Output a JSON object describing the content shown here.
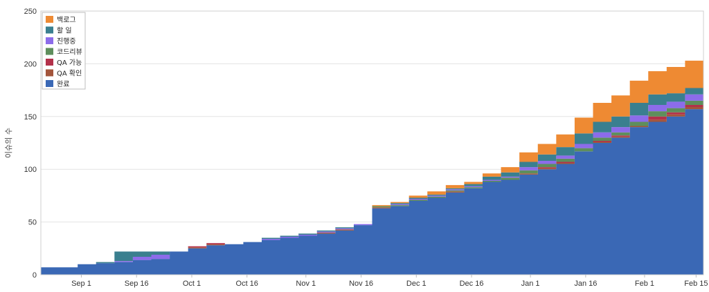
{
  "chart_data": {
    "type": "area",
    "stacked": true,
    "title": "",
    "xlabel": "",
    "ylabel": "이슈의 수",
    "x_range": [
      "2024-08-21",
      "2025-02-17"
    ],
    "ylim": [
      0,
      250
    ],
    "y_ticks": [
      0,
      50,
      100,
      150,
      200,
      250
    ],
    "x_ticks": [
      {
        "date": "2024-09-01",
        "label": "Sep 1"
      },
      {
        "date": "2024-09-16",
        "label": "Sep 16"
      },
      {
        "date": "2024-10-01",
        "label": "Oct 1"
      },
      {
        "date": "2024-10-16",
        "label": "Oct 16"
      },
      {
        "date": "2024-11-01",
        "label": "Nov 1"
      },
      {
        "date": "2024-11-16",
        "label": "Nov 16"
      },
      {
        "date": "2024-12-01",
        "label": "Dec 1"
      },
      {
        "date": "2024-12-16",
        "label": "Dec 16"
      },
      {
        "date": "2025-01-01",
        "label": "Jan 1"
      },
      {
        "date": "2025-01-16",
        "label": "Jan 16"
      },
      {
        "date": "2025-02-01",
        "label": "Feb 1"
      },
      {
        "date": "2025-02-15",
        "label": "Feb 15"
      }
    ],
    "grid": true,
    "legend_position": "top-left",
    "x": [
      "2024-08-21",
      "2024-08-26",
      "2024-08-31",
      "2024-09-05",
      "2024-09-10",
      "2024-09-15",
      "2024-09-20",
      "2024-09-25",
      "2024-09-30",
      "2024-10-05",
      "2024-10-10",
      "2024-10-15",
      "2024-10-20",
      "2024-10-25",
      "2024-10-30",
      "2024-11-04",
      "2024-11-09",
      "2024-11-14",
      "2024-11-19",
      "2024-11-24",
      "2024-11-29",
      "2024-12-04",
      "2024-12-09",
      "2024-12-14",
      "2024-12-19",
      "2024-12-24",
      "2024-12-29",
      "2025-01-03",
      "2025-01-08",
      "2025-01-13",
      "2025-01-18",
      "2025-01-23",
      "2025-01-28",
      "2025-02-02",
      "2025-02-07",
      "2025-02-12",
      "2025-02-17"
    ],
    "series": [
      {
        "name": "완료",
        "color": "#3a68b5",
        "values": [
          7,
          7,
          10,
          11,
          12,
          14,
          15,
          22,
          25,
          28,
          29,
          31,
          33,
          35,
          37,
          39,
          42,
          47,
          63,
          65,
          70,
          73,
          78,
          82,
          88,
          90,
          95,
          100,
          105,
          117,
          125,
          130,
          140,
          145,
          150,
          157,
          165
        ]
      },
      {
        "name": "QA 확인",
        "color": "#a3553b",
        "values": [
          0,
          0,
          0,
          0,
          0,
          0,
          0,
          0,
          1,
          1,
          0,
          0,
          0,
          0,
          0,
          1,
          1,
          0,
          1,
          0,
          0,
          0,
          1,
          0,
          0,
          0,
          1,
          1,
          1,
          0,
          1,
          1,
          1,
          2,
          2,
          2,
          2
        ]
      },
      {
        "name": "QA 가능",
        "color": "#b3314a",
        "values": [
          0,
          0,
          0,
          0,
          0,
          0,
          0,
          0,
          1,
          1,
          0,
          0,
          0,
          0,
          0,
          0,
          0,
          0,
          0,
          0,
          0,
          0,
          0,
          0,
          0,
          0,
          0,
          1,
          1,
          0,
          1,
          1,
          0,
          3,
          2,
          2,
          1
        ]
      },
      {
        "name": "코드리뷰",
        "color": "#5e8e5c",
        "values": [
          0,
          0,
          0,
          0,
          0,
          0,
          0,
          0,
          0,
          0,
          0,
          0,
          0,
          0,
          0,
          0,
          0,
          0,
          1,
          1,
          1,
          1,
          1,
          1,
          1,
          2,
          3,
          3,
          3,
          3,
          3,
          3,
          4,
          5,
          4,
          4,
          3
        ]
      },
      {
        "name": "진행중",
        "color": "#8c6cea",
        "values": [
          0,
          0,
          0,
          0,
          1,
          3,
          4,
          0,
          0,
          0,
          0,
          0,
          1,
          1,
          1,
          1,
          1,
          1,
          0,
          1,
          1,
          1,
          1,
          1,
          1,
          1,
          3,
          3,
          3,
          4,
          5,
          5,
          6,
          6,
          6,
          6,
          6
        ]
      },
      {
        "name": "할 일",
        "color": "#3a7f8f",
        "values": [
          0,
          0,
          0,
          1,
          9,
          5,
          3,
          0,
          0,
          0,
          0,
          0,
          1,
          1,
          1,
          1,
          1,
          0,
          0,
          1,
          1,
          1,
          1,
          2,
          3,
          4,
          5,
          6,
          8,
          10,
          10,
          10,
          12,
          10,
          8,
          6,
          5
        ]
      },
      {
        "name": "백로그",
        "color": "#ee8a33",
        "values": [
          0,
          0,
          0,
          0,
          0,
          0,
          0,
          0,
          0,
          0,
          0,
          0,
          0,
          0,
          0,
          0,
          0,
          0,
          1,
          1,
          2,
          3,
          3,
          2,
          3,
          5,
          9,
          10,
          12,
          15,
          18,
          20,
          21,
          22,
          25,
          26,
          24
        ]
      }
    ],
    "legend_order": [
      "백로그",
      "할 일",
      "진행중",
      "코드리뷰",
      "QA 가능",
      "QA 확인",
      "완료"
    ]
  }
}
